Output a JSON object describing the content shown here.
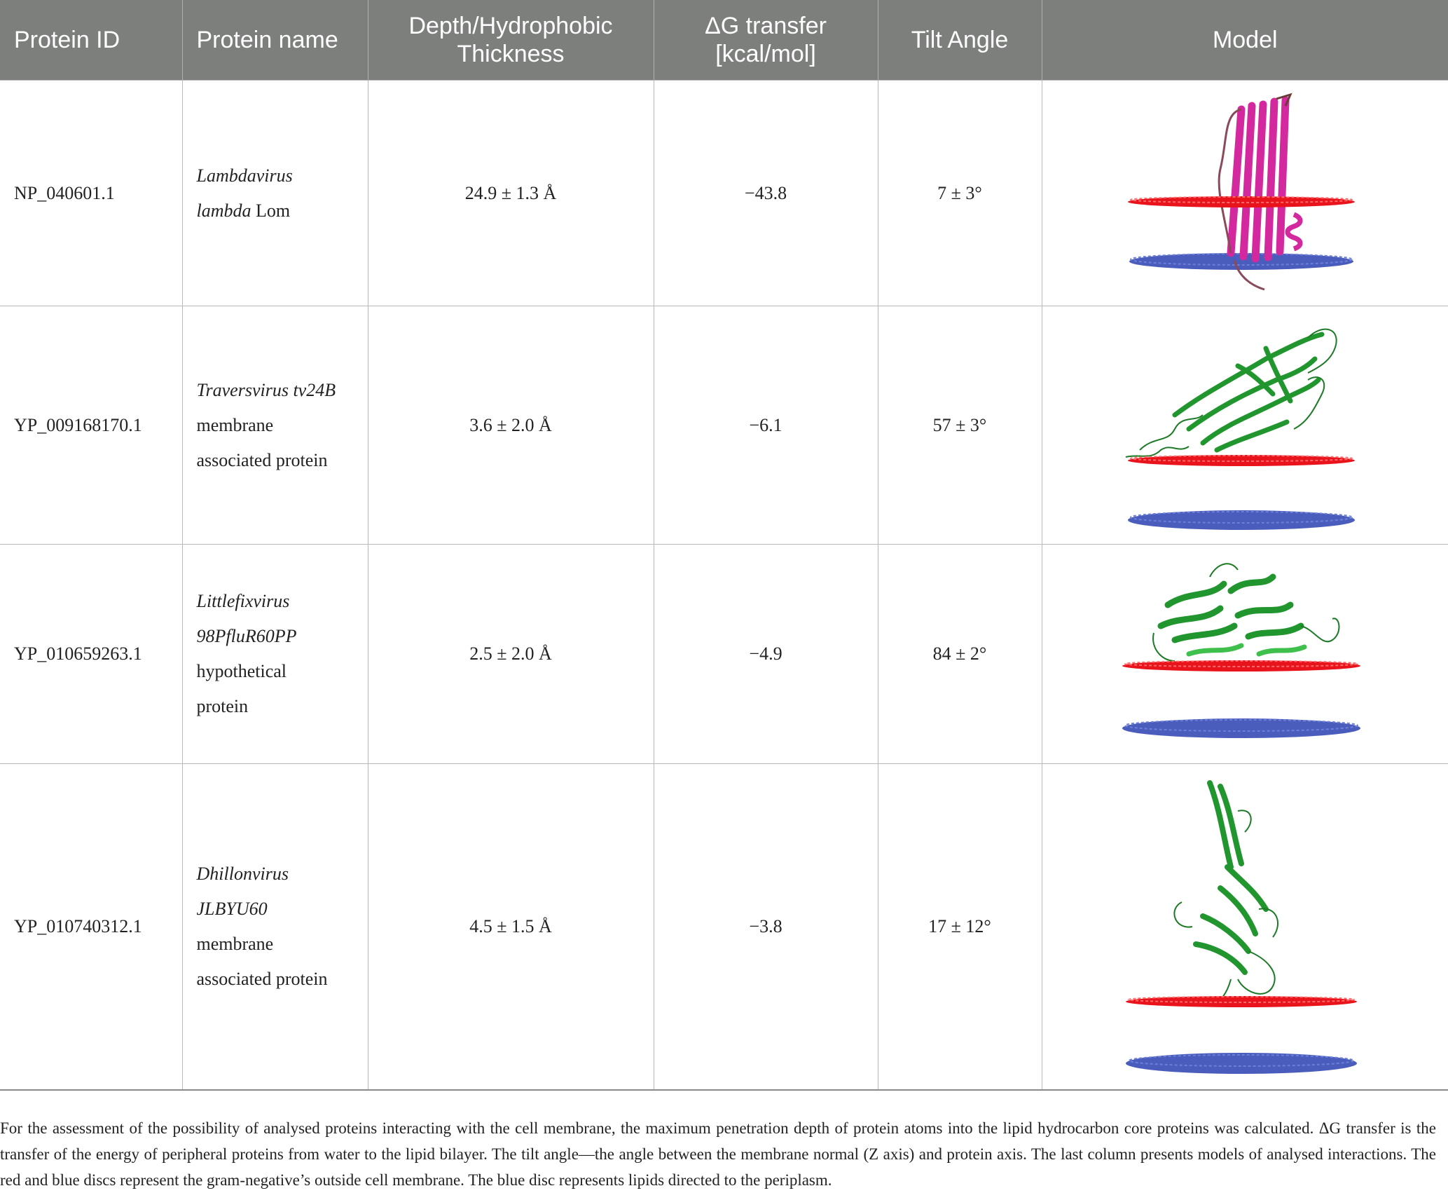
{
  "headers": {
    "protein_id": "Protein ID",
    "protein_name": "Protein name",
    "depth": "Depth/Hydrophobic Thickness",
    "delta_g": "ΔG transfer [kcal/mol]",
    "tilt": "Tilt Angle",
    "model": "Model"
  },
  "rows": [
    {
      "id": "NP_040601.1",
      "name_lines": [
        {
          "parts": [
            {
              "text": "Lambdavirus",
              "italic": true
            }
          ]
        },
        {
          "parts": [
            {
              "text": "lambda",
              "italic": true
            },
            {
              "text": " Lom",
              "italic": false
            }
          ]
        }
      ],
      "depth": "24.9 ± 1.3 Å",
      "delta_g": "−43.8",
      "tilt": "7 ± 3°",
      "model_icon": "magenta-beta-barrel-membrane-model"
    },
    {
      "id": "YP_009168170.1",
      "name_lines": [
        {
          "parts": [
            {
              "text": "Traversvirus tv24B",
              "italic": true
            }
          ]
        },
        {
          "parts": [
            {
              "text": "membrane",
              "italic": false
            }
          ]
        },
        {
          "parts": [
            {
              "text": "associated protein",
              "italic": false
            }
          ]
        }
      ],
      "depth": "3.6 ± 2.0 Å",
      "delta_g": "−6.1",
      "tilt": "57 ± 3°",
      "model_icon": "green-protein-membrane-model"
    },
    {
      "id": "YP_010659263.1",
      "name_lines": [
        {
          "parts": [
            {
              "text": "Littlefixvirus",
              "italic": true
            }
          ]
        },
        {
          "parts": [
            {
              "text": "98PfluR60PP",
              "italic": true
            }
          ]
        },
        {
          "parts": [
            {
              "text": "hypothetical",
              "italic": false
            }
          ]
        },
        {
          "parts": [
            {
              "text": "protein",
              "italic": false
            }
          ]
        }
      ],
      "depth": "2.5 ± 2.0 Å",
      "delta_g": "−4.9",
      "tilt": "84 ± 2°",
      "model_icon": "green-protein-membrane-model"
    },
    {
      "id": "YP_010740312.1",
      "name_lines": [
        {
          "parts": [
            {
              "text": "Dhillonvirus",
              "italic": true
            }
          ]
        },
        {
          "parts": [
            {
              "text": "JLBYU60",
              "italic": true
            }
          ]
        },
        {
          "parts": [
            {
              "text": "membrane",
              "italic": false
            }
          ]
        },
        {
          "parts": [
            {
              "text": "associated protein",
              "italic": false
            }
          ]
        }
      ],
      "depth": "4.5 ± 1.5 Å",
      "delta_g": "−3.8",
      "tilt": "17 ± 12°",
      "model_icon": "green-protein-membrane-model"
    }
  ],
  "colors": {
    "header_bg": "#7d7f7d",
    "outer_disc": "#e8131b",
    "inner_disc": "#4a5dbd",
    "lom_ribbon": "#d4289e",
    "ribbon_green": "#22962e"
  },
  "footnote": "For the assessment of the possibility of analysed proteins interacting with the cell membrane, the maximum penetration depth of protein atoms into the lipid hydrocarbon core proteins was calculated. ΔG transfer is the transfer of the energy of peripheral proteins from water to the lipid bilayer. The tilt angle—the angle between the membrane normal (Z axis) and protein axis. The last column presents models of analysed interactions. The red and blue discs represent the gram-negative’s outside cell membrane. The blue disc represents lipids directed to the periplasm."
}
